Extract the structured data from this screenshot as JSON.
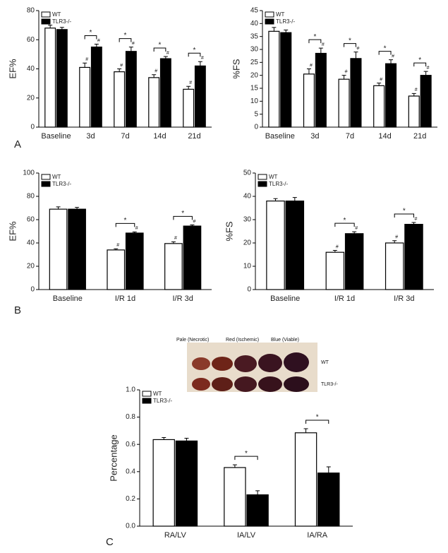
{
  "panels": [
    "A",
    "B",
    "C"
  ],
  "photo": {
    "labels": [
      "Pale (Necrotic)",
      "Red (Ischemic)",
      "Blue (Viable)"
    ],
    "rows": [
      "WT",
      "TLR3-/-"
    ]
  },
  "chart_data": [
    {
      "type": "bar",
      "y_label": "EF%",
      "categories": [
        "Baseline",
        "3d",
        "7d",
        "14d",
        "21d"
      ],
      "series": [
        {
          "name": "WT",
          "color": "#ffffff",
          "values": [
            68,
            41,
            38,
            34,
            26
          ],
          "errors": [
            2,
            3,
            2,
            2,
            2
          ],
          "sig": [
            null,
            "#",
            "#",
            "#",
            "#"
          ]
        },
        {
          "name": "TLR3-/-",
          "color": "#000000",
          "values": [
            67,
            55,
            52,
            47,
            42
          ],
          "errors": [
            1.5,
            2,
            3,
            1.5,
            3
          ],
          "sig": [
            null,
            "#",
            "#",
            "#",
            "#"
          ]
        }
      ],
      "brackets": [
        null,
        "*",
        "*",
        "*",
        "*"
      ],
      "ylim": [
        0,
        80
      ],
      "yticks": [
        0,
        20,
        40,
        60,
        80
      ]
    },
    {
      "type": "bar",
      "y_label": "%FS",
      "categories": [
        "Baseline",
        "3d",
        "7d",
        "14d",
        "21d"
      ],
      "series": [
        {
          "name": "WT",
          "color": "#ffffff",
          "values": [
            37,
            20.5,
            18.5,
            16,
            12
          ],
          "errors": [
            1.5,
            2,
            1.5,
            1,
            1
          ],
          "sig": [
            null,
            "#",
            "#",
            "#",
            "#"
          ]
        },
        {
          "name": "TLR3-/-",
          "color": "#000000",
          "values": [
            36.5,
            28.5,
            26.5,
            24.5,
            20
          ],
          "errors": [
            1,
            2,
            2.5,
            1.5,
            1.5
          ],
          "sig": [
            null,
            "#",
            "#",
            "#",
            "#"
          ]
        }
      ],
      "brackets": [
        null,
        "*",
        "*",
        "*",
        "*"
      ],
      "ylim": [
        0,
        45
      ],
      "yticks": [
        0,
        5,
        10,
        15,
        20,
        25,
        30,
        35,
        40,
        45
      ]
    },
    {
      "type": "bar",
      "y_label": "EF%",
      "categories": [
        "Baseline",
        "I/R 1d",
        "I/R 3d"
      ],
      "series": [
        {
          "name": "WT",
          "color": "#ffffff",
          "values": [
            69,
            34,
            39.5
          ],
          "errors": [
            2,
            1,
            1.5
          ],
          "sig": [
            null,
            "#",
            "#"
          ]
        },
        {
          "name": "TLR3-/-",
          "color": "#000000",
          "values": [
            69,
            48.5,
            54.5
          ],
          "errors": [
            1.5,
            1,
            1
          ],
          "sig": [
            null,
            "#",
            "#"
          ]
        }
      ],
      "brackets": [
        null,
        "*",
        "*"
      ],
      "ylim": [
        0,
        100
      ],
      "yticks": [
        0,
        20,
        40,
        60,
        80,
        100
      ]
    },
    {
      "type": "bar",
      "y_label": "%FS",
      "categories": [
        "Baseline",
        "I/R 1d",
        "I/R 3d"
      ],
      "series": [
        {
          "name": "WT",
          "color": "#ffffff",
          "values": [
            38,
            16,
            20
          ],
          "errors": [
            1,
            0.8,
            1
          ],
          "sig": [
            null,
            "#",
            "#"
          ]
        },
        {
          "name": "TLR3-/-",
          "color": "#000000",
          "values": [
            38,
            24,
            28
          ],
          "errors": [
            1.5,
            0.8,
            0.8
          ],
          "sig": [
            null,
            "#",
            "#"
          ]
        }
      ],
      "brackets": [
        null,
        "*",
        "*"
      ],
      "ylim": [
        0,
        50
      ],
      "yticks": [
        0,
        10,
        20,
        30,
        40,
        50
      ]
    },
    {
      "type": "bar",
      "y_label": "Percentage",
      "categories": [
        "RA/LV",
        "IA/LV",
        "IA/RA"
      ],
      "series": [
        {
          "name": "WT",
          "color": "#ffffff",
          "values": [
            0.635,
            0.43,
            0.685
          ],
          "errors": [
            0.015,
            0.02,
            0.03
          ],
          "sig": [
            null,
            null,
            null
          ]
        },
        {
          "name": "TLR3-/-",
          "color": "#000000",
          "values": [
            0.625,
            0.23,
            0.39
          ],
          "errors": [
            0.02,
            0.03,
            0.045
          ],
          "sig": [
            null,
            null,
            null
          ]
        }
      ],
      "brackets": [
        null,
        "*",
        "*"
      ],
      "ylim": [
        0,
        1.0
      ],
      "yticks": [
        {
          "value": 0,
          "label": "0.0"
        },
        0.2,
        0.4,
        0.6,
        0.8,
        {
          "value": 1.0,
          "label": "1.0"
        }
      ]
    }
  ]
}
